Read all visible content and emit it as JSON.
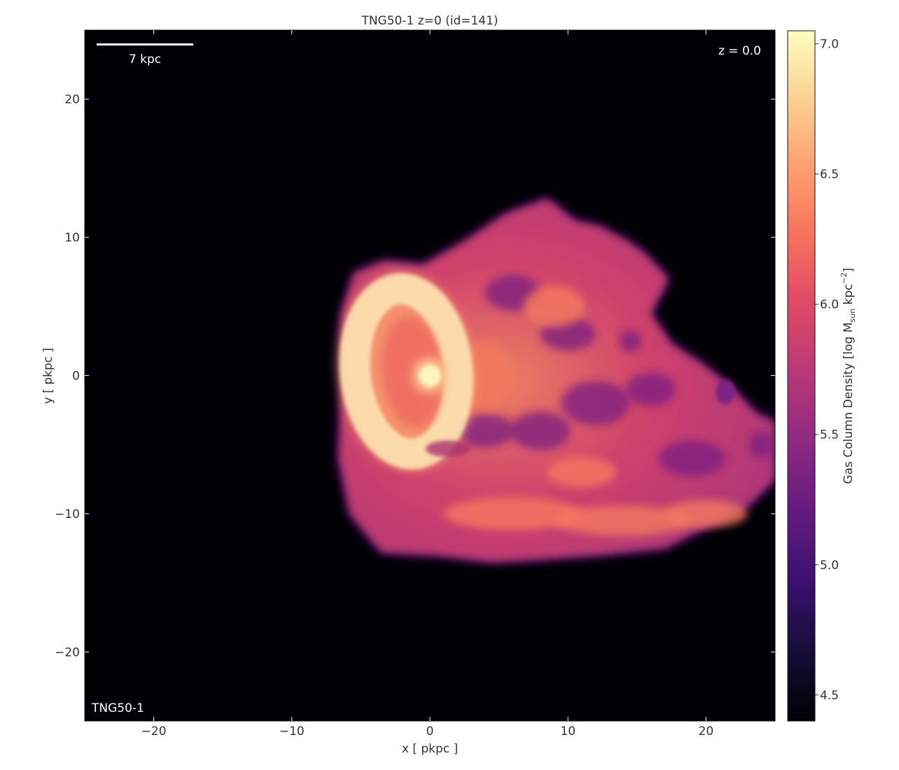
{
  "figure": {
    "title": "TNG50-1 z=0 (id=141)",
    "sim_label": "TNG50-1",
    "redshift_label": "z = 0.0",
    "scalebar_label": "7 kpc",
    "scalebar_length": 7
  },
  "chart_data": {
    "type": "heatmap",
    "title": "TNG50-1 z=0 (id=141)",
    "xlabel": "x [ pkpc ]",
    "ylabel": "y [ pkpc ]",
    "xlim": [
      -25,
      25
    ],
    "ylim": [
      -25,
      25
    ],
    "xticks": [
      -20,
      -10,
      0,
      10,
      20
    ],
    "yticks": [
      20,
      10,
      0,
      -10,
      -20
    ],
    "xtick_labels": [
      "−20",
      "−10",
      "0",
      "10",
      "20"
    ],
    "ytick_labels": [
      "20",
      "10",
      "0",
      "−10",
      "−20"
    ],
    "colormap": "magma",
    "colorbar": {
      "label_prefix": "Gas Column Density [log M",
      "label_sub": "sun",
      "label_mid": " kpc",
      "label_sup": "−2",
      "label_suffix": "]",
      "range": [
        4.4,
        7.05
      ],
      "ticks": [
        4.5,
        5.0,
        5.5,
        6.0,
        6.5,
        7.0
      ],
      "tick_labels": [
        "4.5",
        "5.0",
        "5.5",
        "6.0",
        "6.5",
        "7.0"
      ]
    },
    "grid": false,
    "features": {
      "gas_envelope": [
        [
          -6.4,
          4.5
        ],
        [
          -5.5,
          7.4
        ],
        [
          -3.3,
          8.3
        ],
        [
          -0.5,
          8.0
        ],
        [
          2.5,
          9.7
        ],
        [
          5.5,
          11.7
        ],
        [
          8.5,
          12.8
        ],
        [
          10.5,
          11.2
        ],
        [
          12.3,
          10.8
        ],
        [
          14.2,
          9.8
        ],
        [
          15.5,
          8.9
        ],
        [
          17.3,
          7.0
        ],
        [
          16.0,
          4.5
        ],
        [
          17.5,
          2.3
        ],
        [
          19.8,
          0.8
        ],
        [
          21.8,
          -0.8
        ],
        [
          23.7,
          -2.8
        ],
        [
          25,
          -3.3
        ],
        [
          25,
          -7.5
        ],
        [
          23.0,
          -9.5
        ],
        [
          20.0,
          -11.0
        ],
        [
          17.0,
          -12.5
        ],
        [
          12.0,
          -13.0
        ],
        [
          8.0,
          -13.3
        ],
        [
          4.5,
          -13.5
        ],
        [
          0.5,
          -13.0
        ],
        [
          -3.5,
          -12.8
        ],
        [
          -5.8,
          -10.0
        ],
        [
          -6.6,
          -6.0
        ],
        [
          -6.4,
          -1.0
        ]
      ],
      "dense_ring": {
        "center": [
          -1.7,
          0.3
        ],
        "radius_x": 3.7,
        "radius_y": 6.0,
        "rotation_deg": -6
      },
      "core": {
        "center": [
          0.0,
          0.0
        ],
        "radius": 0.8,
        "log_density": 7.0
      },
      "satellite_clump": {
        "center": [
          21.4,
          -1.2
        ],
        "radius": 0.7,
        "log_density": 5.3
      }
    }
  }
}
